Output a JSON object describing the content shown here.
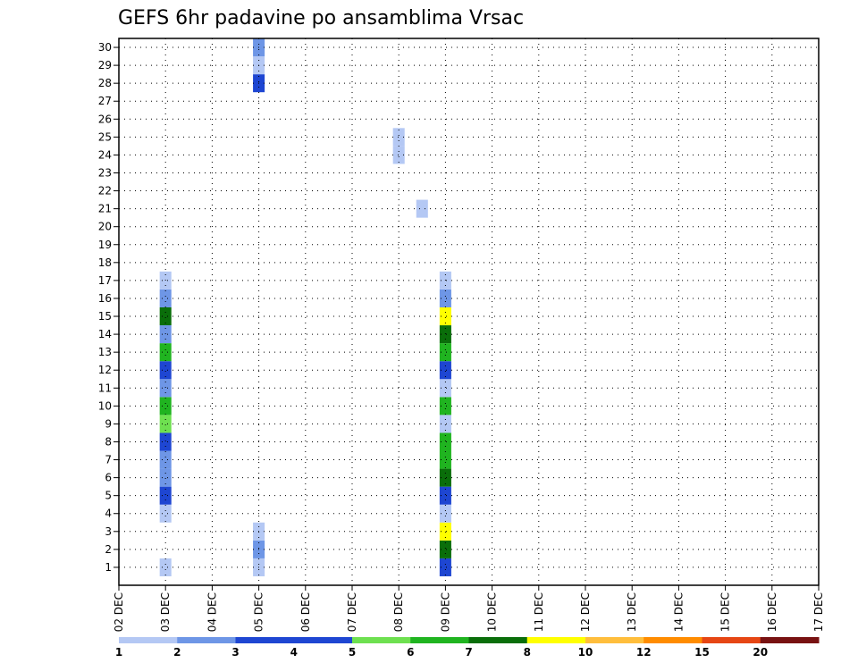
{
  "chart_data": {
    "type": "heatmap",
    "title": "GEFS 6hr padavine po ansamblima Vrsac",
    "xlabel": "",
    "ylabel": "",
    "x_ticks": [
      "02 DEC",
      "03 DEC",
      "04 DEC",
      "05 DEC",
      "06 DEC",
      "07 DEC",
      "08 DEC",
      "09 DEC",
      "10 DEC",
      "11 DEC",
      "12 DEC",
      "13 DEC",
      "14 DEC",
      "15 DEC",
      "16 DEC",
      "17 DEC"
    ],
    "x_range_days": [
      0,
      15
    ],
    "y_members": [
      1,
      2,
      3,
      4,
      5,
      6,
      7,
      8,
      9,
      10,
      11,
      12,
      13,
      14,
      15,
      16,
      17,
      18,
      19,
      20,
      21,
      22,
      23,
      24,
      25,
      26,
      27,
      28,
      29,
      30
    ],
    "grid": true,
    "colorbar": {
      "labels": [
        "1",
        "2",
        "3",
        "4",
        "5",
        "6",
        "7",
        "8",
        "10",
        "12",
        "15",
        "20"
      ],
      "colors": [
        "#b4c8f4",
        "#6e96e6",
        "#1e46d2",
        "#1e46d2",
        "#6ee050",
        "#20b420",
        "#0a6e0a",
        "#ffff00",
        "#ffbe3c",
        "#ff8c00",
        "#e64614",
        "#781212"
      ]
    },
    "cells": [
      [
        1,
        1,
        1
      ],
      [
        1,
        4,
        1
      ],
      [
        1,
        5,
        4
      ],
      [
        1,
        6,
        2
      ],
      [
        1,
        7,
        2
      ],
      [
        1,
        8,
        4
      ],
      [
        1,
        9,
        5
      ],
      [
        1,
        10,
        6
      ],
      [
        1,
        11,
        2
      ],
      [
        1,
        12,
        4
      ],
      [
        1,
        13,
        6
      ],
      [
        1,
        14,
        2
      ],
      [
        1,
        15,
        7
      ],
      [
        1,
        16,
        2
      ],
      [
        1,
        17,
        1
      ],
      [
        3,
        1,
        1
      ],
      [
        3,
        2,
        2
      ],
      [
        3,
        3,
        1
      ],
      [
        3,
        28,
        3
      ],
      [
        3,
        29,
        1
      ],
      [
        3,
        30,
        2
      ],
      [
        6,
        24,
        1
      ],
      [
        6,
        25,
        1
      ],
      [
        6.5,
        21,
        1
      ],
      [
        7,
        1,
        3
      ],
      [
        7,
        2,
        7
      ],
      [
        7,
        3,
        8
      ],
      [
        7,
        4,
        1
      ],
      [
        7,
        5,
        3
      ],
      [
        7,
        6,
        7
      ],
      [
        7,
        7,
        6
      ],
      [
        7,
        8,
        6
      ],
      [
        7,
        9,
        1
      ],
      [
        7,
        10,
        6
      ],
      [
        7,
        11,
        1
      ],
      [
        7,
        12,
        3
      ],
      [
        7,
        13,
        6
      ],
      [
        7,
        14,
        7
      ],
      [
        7,
        15,
        8
      ],
      [
        7,
        16,
        2
      ],
      [
        7,
        17,
        1
      ]
    ]
  }
}
